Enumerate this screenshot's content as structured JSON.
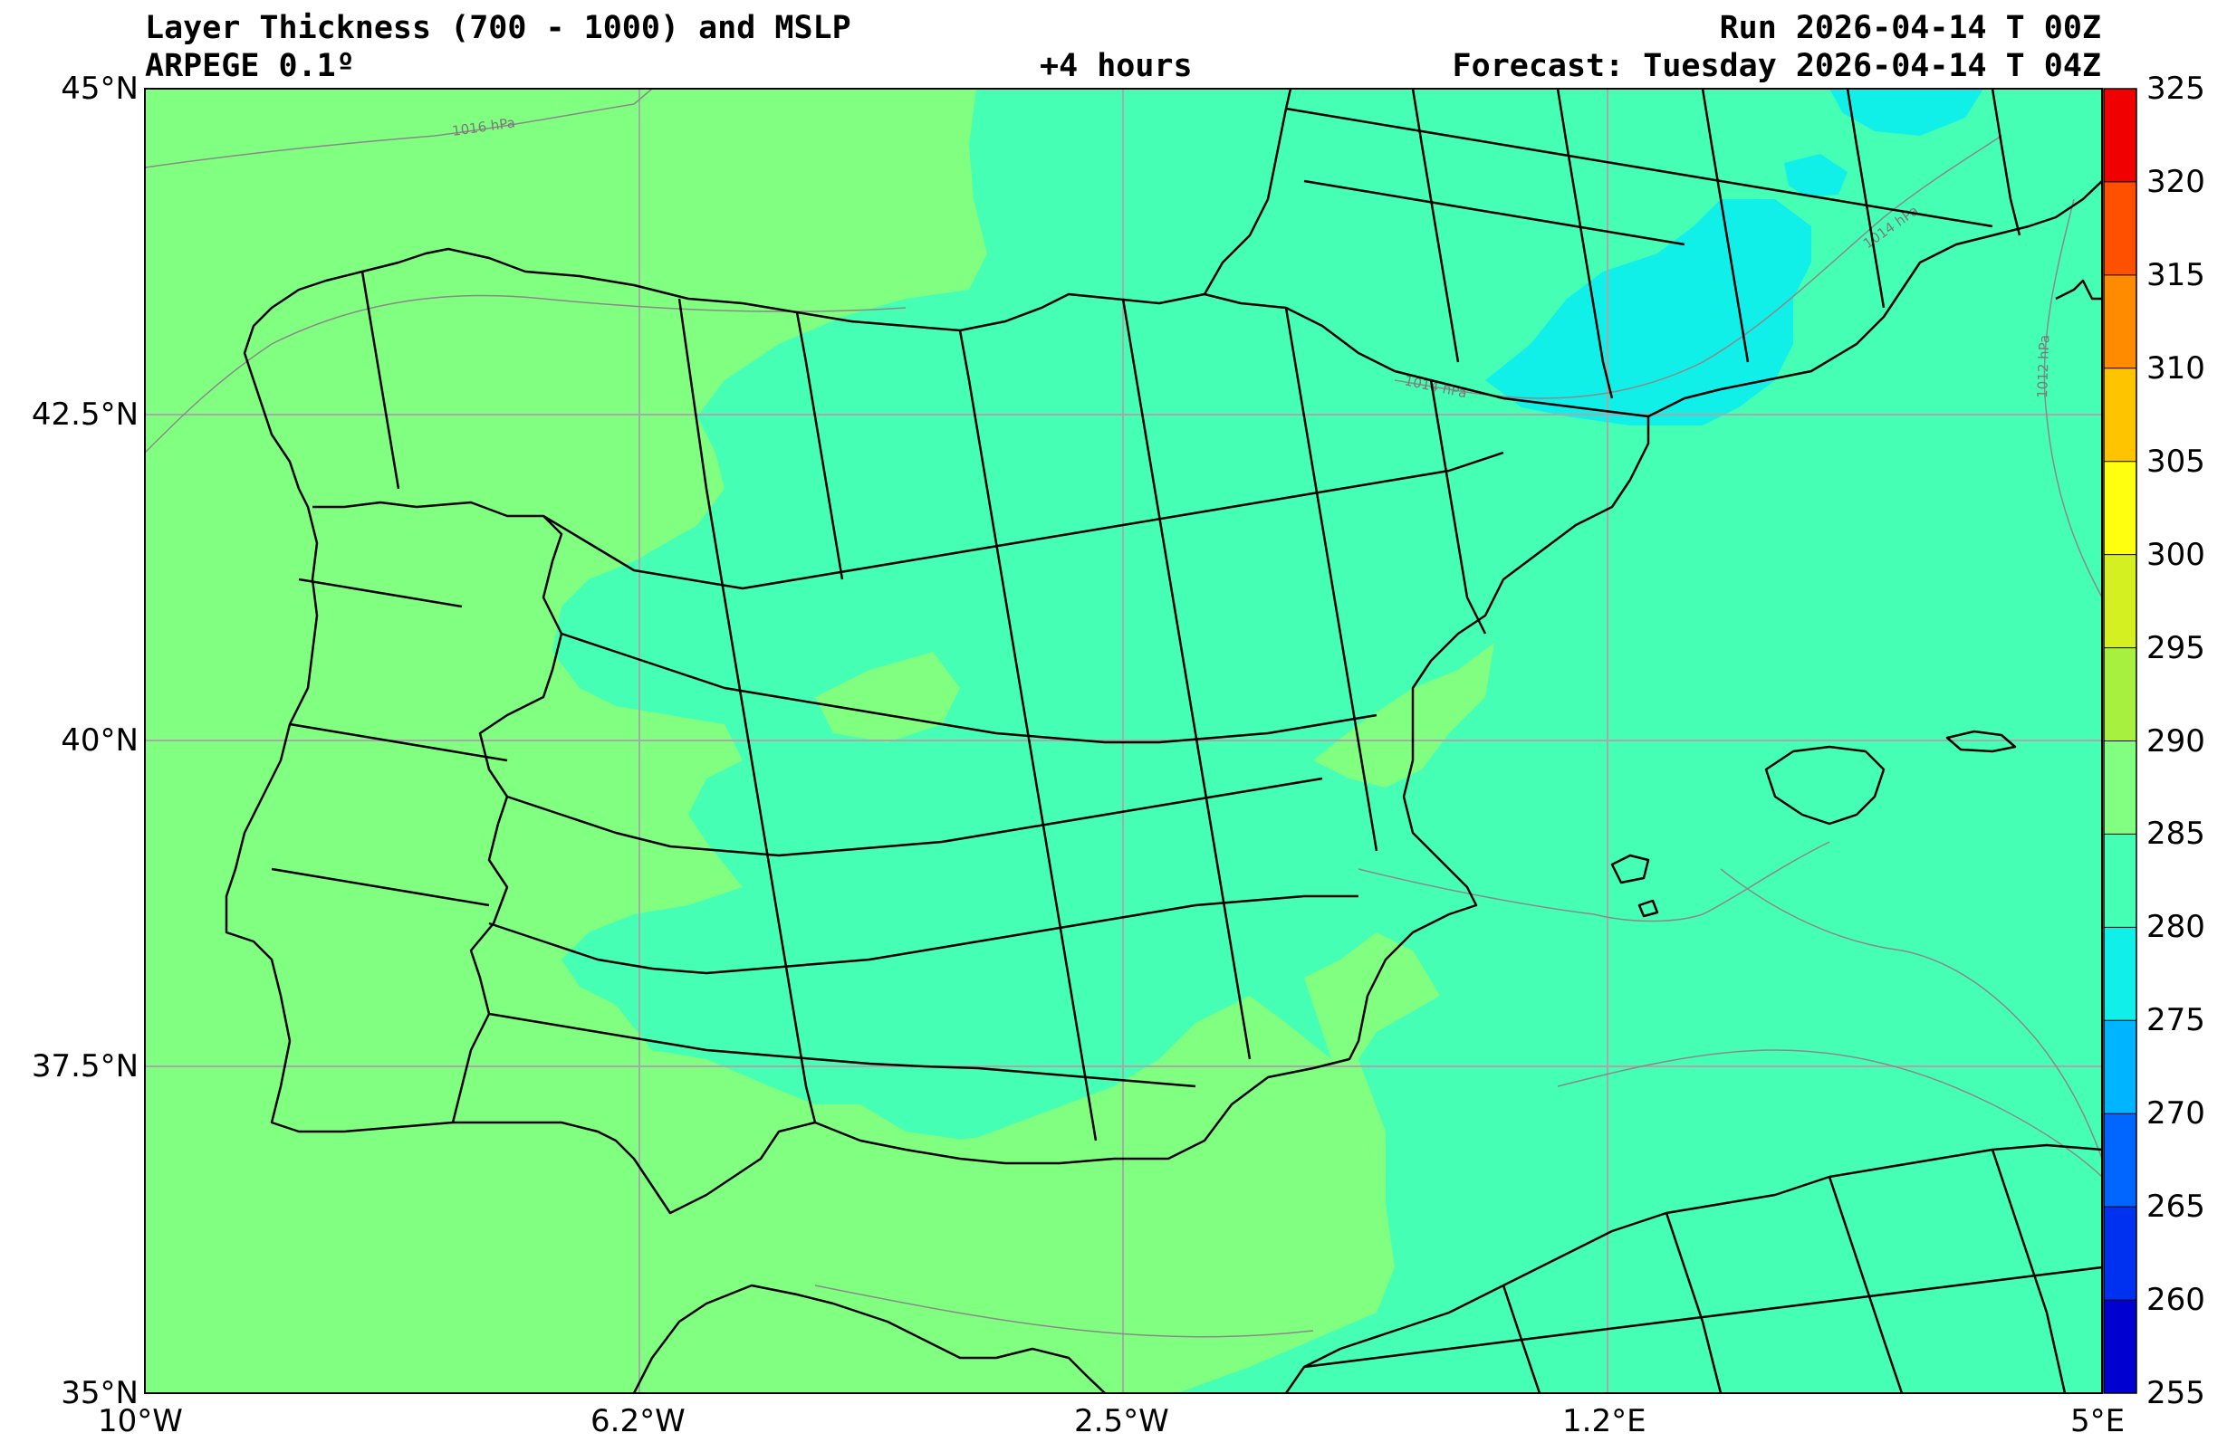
{
  "header": {
    "title": "Layer Thickness (700 - 1000) and MSLP",
    "model": "ARPEGE 0.1º",
    "lead_time": "+4 hours",
    "run": "Run 2026-04-14 T 00Z",
    "forecast": "Forecast: Tuesday 2026-04-14 T 04Z"
  },
  "map": {
    "lat_labels": [
      "45°N",
      "42.5°N",
      "40°N",
      "37.5°N",
      "35°N"
    ],
    "lon_labels": [
      "10°W",
      "6.2°W",
      "2.5°W",
      "1.2°E",
      "5°E"
    ],
    "isobar_labels": [
      "1016 hPa",
      "1014 hPa",
      "1012 hPa",
      "1014 hPa"
    ]
  },
  "colorbar": {
    "ticks": [
      "325",
      "320",
      "315",
      "310",
      "305",
      "300",
      "295",
      "290",
      "285",
      "280",
      "275",
      "270",
      "265",
      "260",
      "255"
    ],
    "colors": [
      "#f00000",
      "#ff5000",
      "#ff8c00",
      "#ffc400",
      "#ffff10",
      "#d4f020",
      "#a8f040",
      "#80ff80",
      "#44ffb4",
      "#10f0e8",
      "#00b4ff",
      "#0066ff",
      "#0030f0",
      "#0000d0",
      "#000090"
    ]
  },
  "colors": {
    "warm_fill": "#80ff80",
    "mid_fill": "#44ffb4",
    "cool_fill": "#10f0e8",
    "coast": "#000000",
    "grid": "#a8a8a8"
  }
}
